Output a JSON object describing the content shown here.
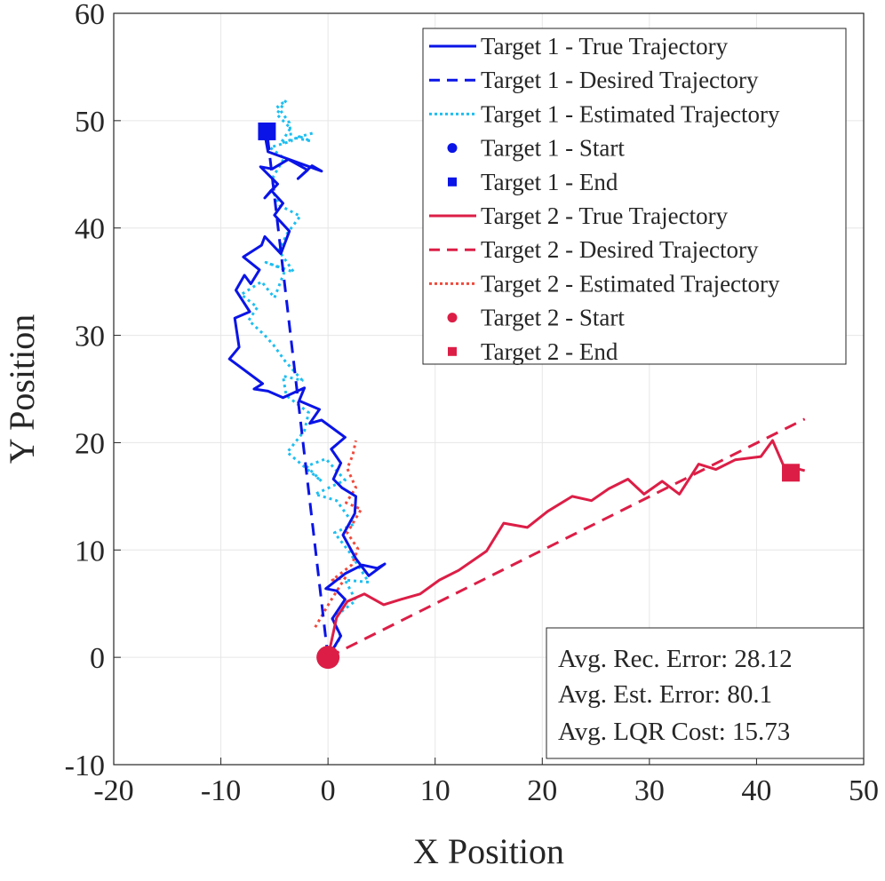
{
  "chart_data": {
    "type": "line",
    "title": "",
    "xlabel": "X Position",
    "ylabel": "Y Position",
    "xlim": [
      -20,
      50
    ],
    "ylim": [
      -10,
      60
    ],
    "xticks": [
      "-20",
      "-10",
      "0",
      "10",
      "20",
      "30",
      "40",
      "50"
    ],
    "yticks": [
      "-10",
      "0",
      "10",
      "20",
      "30",
      "40",
      "50",
      "60"
    ],
    "grid": true,
    "legend_position": "top-right",
    "colors": {
      "target1": "#0a14e6",
      "target1_est": "#1ebef0",
      "target2": "#dc1e46",
      "target2_est": "#f04a3c"
    },
    "series": [
      {
        "name": "Target 1 - True Trajectory",
        "style": "solid",
        "color": "#0a14e6",
        "x": [
          0,
          1.2,
          0.4,
          1.6,
          0.8,
          -0.2,
          1.6,
          3.2,
          4.6,
          5.3,
          3.8,
          2.6,
          1.4,
          2.5,
          2.6,
          1.3,
          0.5,
          1.2,
          0.3,
          1.6,
          -0.6,
          -1.7,
          -0.8,
          -2.7,
          -2.2,
          -4.2,
          -5.6,
          -6.9,
          -6.1,
          -9.2,
          -8.3,
          -8.7,
          -7.3,
          -8.6,
          -7.8,
          -7.2,
          -6.4,
          -7.9,
          -6.2,
          -5.9,
          -4.4,
          -3.6,
          -5.0,
          -4.2,
          -5.3,
          -5.9,
          -4.7,
          -6.3,
          -5.2,
          -3.7,
          -1.9,
          -2.8,
          -1.5,
          -0.6,
          -5.6,
          -5.8,
          -6.2,
          -5.9,
          -5.8
        ],
        "y": [
          0,
          2,
          3.6,
          5.4,
          6.2,
          6.4,
          7.8,
          8.6,
          8.3,
          8.7,
          7.6,
          9.2,
          11.4,
          13.4,
          15.0,
          15.8,
          16.6,
          18.1,
          19.4,
          20.5,
          22.1,
          21.8,
          23.1,
          23.9,
          25.1,
          24.2,
          24.8,
          25.0,
          25.5,
          27.8,
          28.9,
          31.6,
          32.2,
          34.2,
          35.6,
          34.8,
          36.1,
          37.3,
          38.4,
          39.2,
          37.6,
          39.7,
          41.2,
          42.3,
          43.5,
          42.8,
          44.1,
          45.7,
          45.5,
          46.4,
          45.4,
          44.6,
          45.8,
          45.3,
          47.1,
          48.2,
          49.2,
          48.5,
          49.0
        ]
      },
      {
        "name": "Target 1 - Desired Trajectory",
        "style": "dashed",
        "color": "#0a14e6",
        "x": [
          0,
          -5.7
        ],
        "y": [
          0,
          49
        ]
      },
      {
        "name": "Target 1 - Estimated Trajectory",
        "style": "dotted",
        "color": "#1ebef0",
        "x": [
          0,
          1.2,
          0.4,
          2.6,
          1.6,
          3.8,
          2.0,
          0.6,
          2.4,
          0.8,
          -1.2,
          1.6,
          -0.2,
          -2.0,
          -0.6,
          -3.8,
          -2.2,
          -1.8,
          -3.9,
          -4.2,
          -2.4,
          -4.0,
          -5.1,
          -5.9,
          -7.4,
          -6.6,
          -8.1,
          -6.2,
          -5.0,
          -4.0,
          -5.8,
          -3.2,
          -4.6,
          -3.8,
          -2.6,
          -4.5,
          -5.2,
          -5.1,
          -4.1,
          -5.4,
          -3.4,
          -3.6,
          -4.7,
          -3.9,
          -4.8,
          -3.5,
          -4.4,
          -2.6,
          -1.6,
          -3.1,
          -1.2
        ],
        "y": [
          0,
          1.9,
          3.6,
          5.3,
          7.2,
          7.0,
          9.8,
          11.6,
          12.4,
          14.6,
          15.2,
          16.5,
          18.5,
          17.8,
          16.4,
          19.1,
          21.1,
          22.8,
          24.4,
          26.2,
          25.8,
          27.6,
          29.1,
          30.0,
          31.4,
          32.6,
          33.8,
          35.0,
          33.5,
          36.1,
          36.8,
          35.9,
          37.9,
          39.5,
          41.1,
          42.1,
          43.5,
          44.8,
          46.5,
          47.5,
          48.1,
          49.8,
          51.3,
          51.9,
          50.6,
          49.3,
          47.9,
          48.5,
          48.1,
          48.4,
          48.9
        ]
      },
      {
        "name": "Target 1 - Start",
        "style": "circle-marker",
        "color": "#0a14e6",
        "x": [
          0
        ],
        "y": [
          0
        ]
      },
      {
        "name": "Target 1 - End",
        "style": "square-marker",
        "color": "#0a14e6",
        "x": [
          -5.7
        ],
        "y": [
          49
        ]
      },
      {
        "name": "Target 2 - True Trajectory",
        "style": "solid",
        "color": "#dc1e46",
        "x": [
          0,
          0.8,
          1.8,
          3.4,
          5.2,
          6.8,
          8.6,
          10.4,
          12.2,
          14.8,
          16.4,
          18.6,
          20.5,
          22.8,
          24.6,
          26.2,
          28.0,
          29.5,
          31.2,
          32.8,
          34.6,
          36.2,
          38.0,
          40.4,
          41.5,
          42.5,
          44.5
        ],
        "y": [
          0,
          3.7,
          5.2,
          5.9,
          4.9,
          5.4,
          5.9,
          7.2,
          8.1,
          9.9,
          12.5,
          12.1,
          13.6,
          15.0,
          14.6,
          15.7,
          16.6,
          15.2,
          16.4,
          15.2,
          18.0,
          17.5,
          18.4,
          18.7,
          20.2,
          17.9,
          17.4
        ]
      },
      {
        "name": "Target 2 - Desired Trajectory",
        "style": "dashed",
        "color": "#dc1e46",
        "x": [
          0,
          44.5
        ],
        "y": [
          0,
          22.2
        ]
      },
      {
        "name": "Target 2 - Estimated Trajectory",
        "style": "dotted",
        "color": "#f04a3c",
        "x": [
          -1.2,
          0.2,
          1.6,
          0.4,
          2.2,
          2.8,
          1.8,
          3.1,
          1.7,
          2.6,
          1.8,
          2.3,
          2.6
        ],
        "y": [
          2.8,
          5.2,
          7.4,
          7.2,
          8.6,
          10.1,
          11.6,
          13.8,
          14.4,
          15.8,
          17.6,
          18.8,
          20.2
        ]
      },
      {
        "name": "Target 2 - Start",
        "style": "circle-marker",
        "color": "#dc1e46",
        "x": [
          0
        ],
        "y": [
          0
        ]
      },
      {
        "name": "Target 2 - End",
        "style": "square-marker",
        "color": "#dc1e46",
        "x": [
          43.2
        ],
        "y": [
          17.2
        ]
      }
    ],
    "annotations": [
      "Avg. Rec. Error: 28.12",
      "Avg. Est. Error: 80.1",
      "Avg. LQR Cost: 15.73"
    ]
  }
}
